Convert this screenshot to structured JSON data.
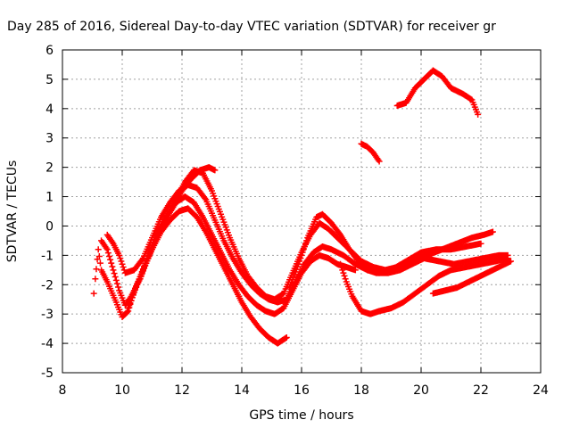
{
  "chart_data": {
    "type": "scatter",
    "title": "Day 285 of 2016, Sidereal Day-to-day VTEC variation (SDTVAR) for receiver gr",
    "xlabel": "GPS time / hours",
    "ylabel": "SDTVAR / TECUs",
    "xlim": [
      8,
      24
    ],
    "ylim": [
      -5,
      6
    ],
    "xticks": [
      "8",
      "10",
      "12",
      "14",
      "16",
      "18",
      "20",
      "22",
      "24"
    ],
    "yticks": [
      "-5",
      "-4",
      "-3",
      "-2",
      "-1",
      "0",
      "1",
      "2",
      "3",
      "4",
      "5",
      "6"
    ],
    "grid": true,
    "marker": "plus",
    "color": "#ff0000",
    "tracks": [
      {
        "points": [
          [
            9.05,
            -2.3
          ],
          [
            9.1,
            -1.8
          ],
          [
            9.2,
            -0.8
          ],
          [
            9.3,
            -1.5
          ],
          [
            9.5,
            -1.9
          ],
          [
            9.8,
            -2.6
          ],
          [
            10.0,
            -3.1
          ],
          [
            10.2,
            -2.9
          ],
          [
            10.4,
            -2.2
          ],
          [
            10.7,
            -1.5
          ],
          [
            11.0,
            -0.8
          ],
          [
            11.3,
            -0.2
          ],
          [
            11.6,
            0.2
          ],
          [
            11.9,
            0.5
          ],
          [
            12.2,
            0.6
          ],
          [
            12.5,
            0.3
          ],
          [
            12.8,
            -0.2
          ],
          [
            13.1,
            -0.8
          ],
          [
            13.4,
            -1.4
          ],
          [
            13.7,
            -2.0
          ],
          [
            14.0,
            -2.6
          ],
          [
            14.3,
            -3.1
          ],
          [
            14.6,
            -3.5
          ],
          [
            14.9,
            -3.8
          ],
          [
            15.2,
            -4.0
          ],
          [
            15.5,
            -3.8
          ]
        ]
      },
      {
        "points": [
          [
            9.3,
            -0.5
          ],
          [
            9.5,
            -0.8
          ],
          [
            9.7,
            -1.5
          ],
          [
            9.9,
            -2.2
          ],
          [
            10.1,
            -2.7
          ],
          [
            10.3,
            -2.4
          ],
          [
            10.6,
            -1.8
          ],
          [
            10.9,
            -1.0
          ],
          [
            11.2,
            -0.2
          ],
          [
            11.5,
            0.3
          ],
          [
            11.8,
            0.8
          ],
          [
            12.1,
            1.0
          ],
          [
            12.4,
            0.8
          ],
          [
            12.7,
            0.3
          ],
          [
            13.0,
            -0.3
          ],
          [
            13.3,
            -0.9
          ],
          [
            13.6,
            -1.5
          ],
          [
            13.9,
            -2.0
          ],
          [
            14.2,
            -2.4
          ],
          [
            14.5,
            -2.7
          ],
          [
            14.8,
            -2.9
          ],
          [
            15.1,
            -3.0
          ],
          [
            15.4,
            -2.8
          ],
          [
            15.7,
            -2.2
          ],
          [
            16.0,
            -1.6
          ],
          [
            16.3,
            -1.2
          ],
          [
            16.6,
            -1.0
          ],
          [
            16.9,
            -1.1
          ],
          [
            17.2,
            -1.3
          ],
          [
            17.5,
            -1.4
          ],
          [
            17.8,
            -1.5
          ]
        ]
      },
      {
        "points": [
          [
            9.5,
            -0.3
          ],
          [
            9.7,
            -0.6
          ],
          [
            9.9,
            -1.0
          ],
          [
            10.1,
            -1.6
          ],
          [
            10.4,
            -1.5
          ],
          [
            10.7,
            -1.1
          ],
          [
            11.0,
            -0.4
          ],
          [
            11.3,
            0.3
          ],
          [
            11.6,
            0.8
          ],
          [
            11.9,
            1.2
          ],
          [
            12.2,
            1.4
          ],
          [
            12.5,
            1.3
          ],
          [
            12.8,
            0.9
          ],
          [
            13.1,
            0.2
          ],
          [
            13.4,
            -0.5
          ],
          [
            13.7,
            -1.1
          ],
          [
            14.0,
            -1.6
          ],
          [
            14.3,
            -2.0
          ],
          [
            14.6,
            -2.3
          ],
          [
            14.9,
            -2.5
          ],
          [
            15.2,
            -2.6
          ],
          [
            15.5,
            -2.5
          ],
          [
            15.8,
            -1.9
          ],
          [
            16.1,
            -1.3
          ],
          [
            16.4,
            -0.9
          ],
          [
            16.7,
            -0.7
          ],
          [
            17.0,
            -0.8
          ],
          [
            17.4,
            -1.0
          ],
          [
            17.8,
            -1.3
          ],
          [
            18.2,
            -1.5
          ],
          [
            18.6,
            -1.6
          ],
          [
            19.0,
            -1.5
          ],
          [
            19.5,
            -1.2
          ],
          [
            20.0,
            -0.9
          ],
          [
            20.5,
            -0.8
          ],
          [
            21.0,
            -0.8
          ],
          [
            21.5,
            -0.7
          ],
          [
            22.0,
            -0.6
          ]
        ]
      },
      {
        "points": [
          [
            10.2,
            -2.8
          ],
          [
            10.5,
            -2.0
          ],
          [
            10.8,
            -1.2
          ],
          [
            11.1,
            -0.4
          ],
          [
            11.4,
            0.2
          ],
          [
            11.7,
            0.7
          ],
          [
            12.0,
            1.2
          ],
          [
            12.3,
            1.6
          ],
          [
            12.6,
            1.9
          ],
          [
            12.9,
            2.0
          ],
          [
            13.1,
            1.9
          ]
        ]
      },
      {
        "points": [
          [
            11.8,
            0.9
          ],
          [
            12.1,
            1.5
          ],
          [
            12.4,
            1.9
          ],
          [
            12.7,
            1.8
          ],
          [
            13.0,
            1.2
          ],
          [
            13.3,
            0.4
          ],
          [
            13.6,
            -0.4
          ],
          [
            13.9,
            -1.1
          ],
          [
            14.2,
            -1.7
          ],
          [
            14.5,
            -2.1
          ],
          [
            14.8,
            -2.4
          ],
          [
            15.1,
            -2.5
          ],
          [
            15.4,
            -2.3
          ],
          [
            15.7,
            -1.6
          ],
          [
            16.0,
            -0.9
          ],
          [
            16.3,
            -0.3
          ],
          [
            16.6,
            0.1
          ],
          [
            16.9,
            -0.1
          ],
          [
            17.2,
            -0.4
          ],
          [
            17.6,
            -0.8
          ],
          [
            18.0,
            -1.2
          ],
          [
            18.4,
            -1.4
          ],
          [
            18.8,
            -1.5
          ],
          [
            19.2,
            -1.4
          ],
          [
            19.7,
            -1.2
          ],
          [
            20.2,
            -1.0
          ],
          [
            20.7,
            -0.8
          ],
          [
            21.2,
            -0.6
          ],
          [
            21.7,
            -0.4
          ],
          [
            22.1,
            -0.3
          ],
          [
            22.4,
            -0.2
          ]
        ]
      },
      {
        "points": [
          [
            15.6,
            -2.1
          ],
          [
            15.9,
            -1.3
          ],
          [
            16.2,
            -0.4
          ],
          [
            16.5,
            0.3
          ],
          [
            16.7,
            0.4
          ],
          [
            17.0,
            0.1
          ],
          [
            17.3,
            -0.3
          ],
          [
            17.6,
            -0.8
          ],
          [
            17.9,
            -1.2
          ],
          [
            18.2,
            -1.5
          ],
          [
            18.5,
            -1.6
          ],
          [
            18.9,
            -1.6
          ],
          [
            19.3,
            -1.5
          ],
          [
            19.7,
            -1.3
          ],
          [
            20.1,
            -1.1
          ],
          [
            20.6,
            -1.2
          ],
          [
            21.1,
            -1.3
          ],
          [
            21.6,
            -1.2
          ],
          [
            22.1,
            -1.1
          ],
          [
            22.6,
            -1.0
          ],
          [
            22.9,
            -1.0
          ]
        ]
      },
      {
        "points": [
          [
            17.3,
            -1.3
          ],
          [
            17.5,
            -1.9
          ],
          [
            17.7,
            -2.4
          ],
          [
            18.0,
            -2.9
          ],
          [
            18.3,
            -3.0
          ],
          [
            18.6,
            -2.9
          ],
          [
            19.0,
            -2.8
          ],
          [
            19.4,
            -2.6
          ],
          [
            19.8,
            -2.3
          ],
          [
            20.2,
            -2.0
          ],
          [
            20.6,
            -1.7
          ],
          [
            21.0,
            -1.5
          ],
          [
            21.5,
            -1.4
          ],
          [
            22.0,
            -1.3
          ],
          [
            22.5,
            -1.2
          ],
          [
            22.9,
            -1.1
          ]
        ]
      },
      {
        "points": [
          [
            20.4,
            -2.3
          ],
          [
            20.8,
            -2.2
          ],
          [
            21.2,
            -2.1
          ],
          [
            21.6,
            -1.9
          ],
          [
            22.0,
            -1.7
          ],
          [
            22.4,
            -1.5
          ],
          [
            22.8,
            -1.3
          ],
          [
            23.0,
            -1.2
          ]
        ]
      },
      {
        "points": [
          [
            18.0,
            2.8
          ],
          [
            18.2,
            2.7
          ],
          [
            18.4,
            2.5
          ],
          [
            18.6,
            2.2
          ]
        ]
      },
      {
        "points": [
          [
            19.2,
            4.1
          ],
          [
            19.5,
            4.2
          ],
          [
            19.8,
            4.7
          ],
          [
            20.1,
            5.0
          ],
          [
            20.4,
            5.3
          ],
          [
            20.7,
            5.1
          ],
          [
            21.0,
            4.7
          ],
          [
            21.4,
            4.5
          ],
          [
            21.7,
            4.3
          ],
          [
            21.9,
            3.8
          ]
        ]
      }
    ]
  }
}
